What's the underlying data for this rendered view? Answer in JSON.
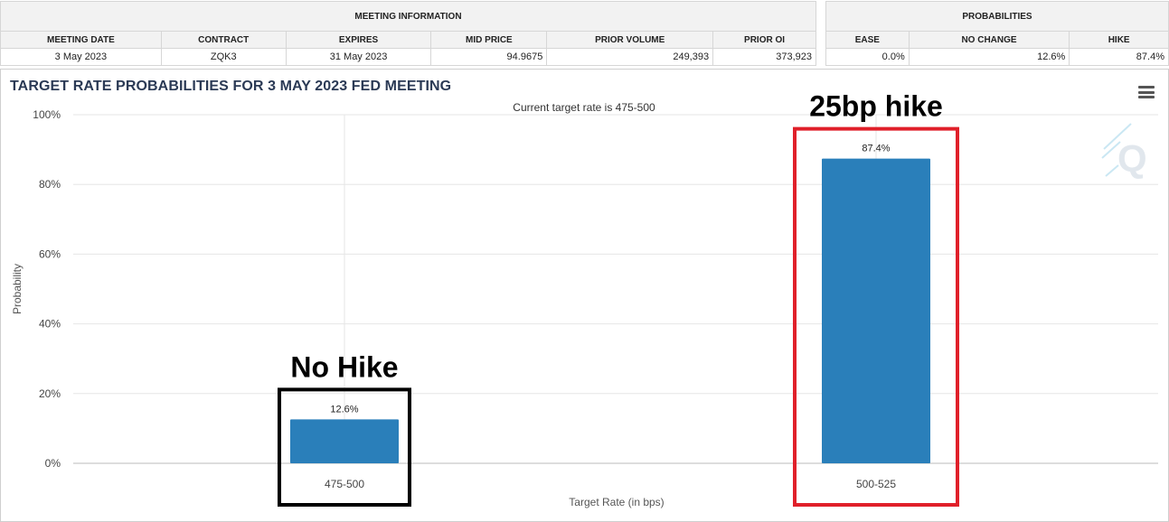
{
  "meeting_info": {
    "header": "MEETING INFORMATION",
    "columns": [
      "MEETING DATE",
      "CONTRACT",
      "EXPIRES",
      "MID PRICE",
      "PRIOR VOLUME",
      "PRIOR OI"
    ],
    "row": [
      "3 May 2023",
      "ZQK3",
      "31 May 2023",
      "94.9675",
      "249,393",
      "373,923"
    ]
  },
  "probabilities": {
    "header": "PROBABILITIES",
    "columns": [
      "EASE",
      "NO CHANGE",
      "HIKE"
    ],
    "row": [
      "0.0%",
      "12.6%",
      "87.4%"
    ]
  },
  "chart_data": {
    "type": "bar",
    "title": "TARGET RATE PROBABILITIES FOR 3 MAY 2023 FED MEETING",
    "subtitle": "Current target rate is 475-500",
    "xlabel": "Target Rate (in bps)",
    "ylabel": "Probability",
    "categories": [
      "475-500",
      "500-525"
    ],
    "values": [
      12.6,
      87.4
    ],
    "data_labels": [
      "12.6%",
      "87.4%"
    ],
    "ylim": [
      0,
      100
    ],
    "yticks": [
      0,
      20,
      40,
      60,
      80,
      100
    ],
    "ytick_labels": [
      "0%",
      "20%",
      "40%",
      "60%",
      "80%",
      "100%"
    ],
    "grid": true,
    "bar_color": "#2a7fba",
    "annotations": [
      {
        "text": "No Hike",
        "category": "475-500",
        "box_color": "#000000"
      },
      {
        "text": "25bp hike",
        "category": "500-525",
        "box_color": "#e0202a"
      }
    ]
  },
  "icons": {
    "menu": "hamburger-menu-icon",
    "watermark": "q-logo"
  }
}
